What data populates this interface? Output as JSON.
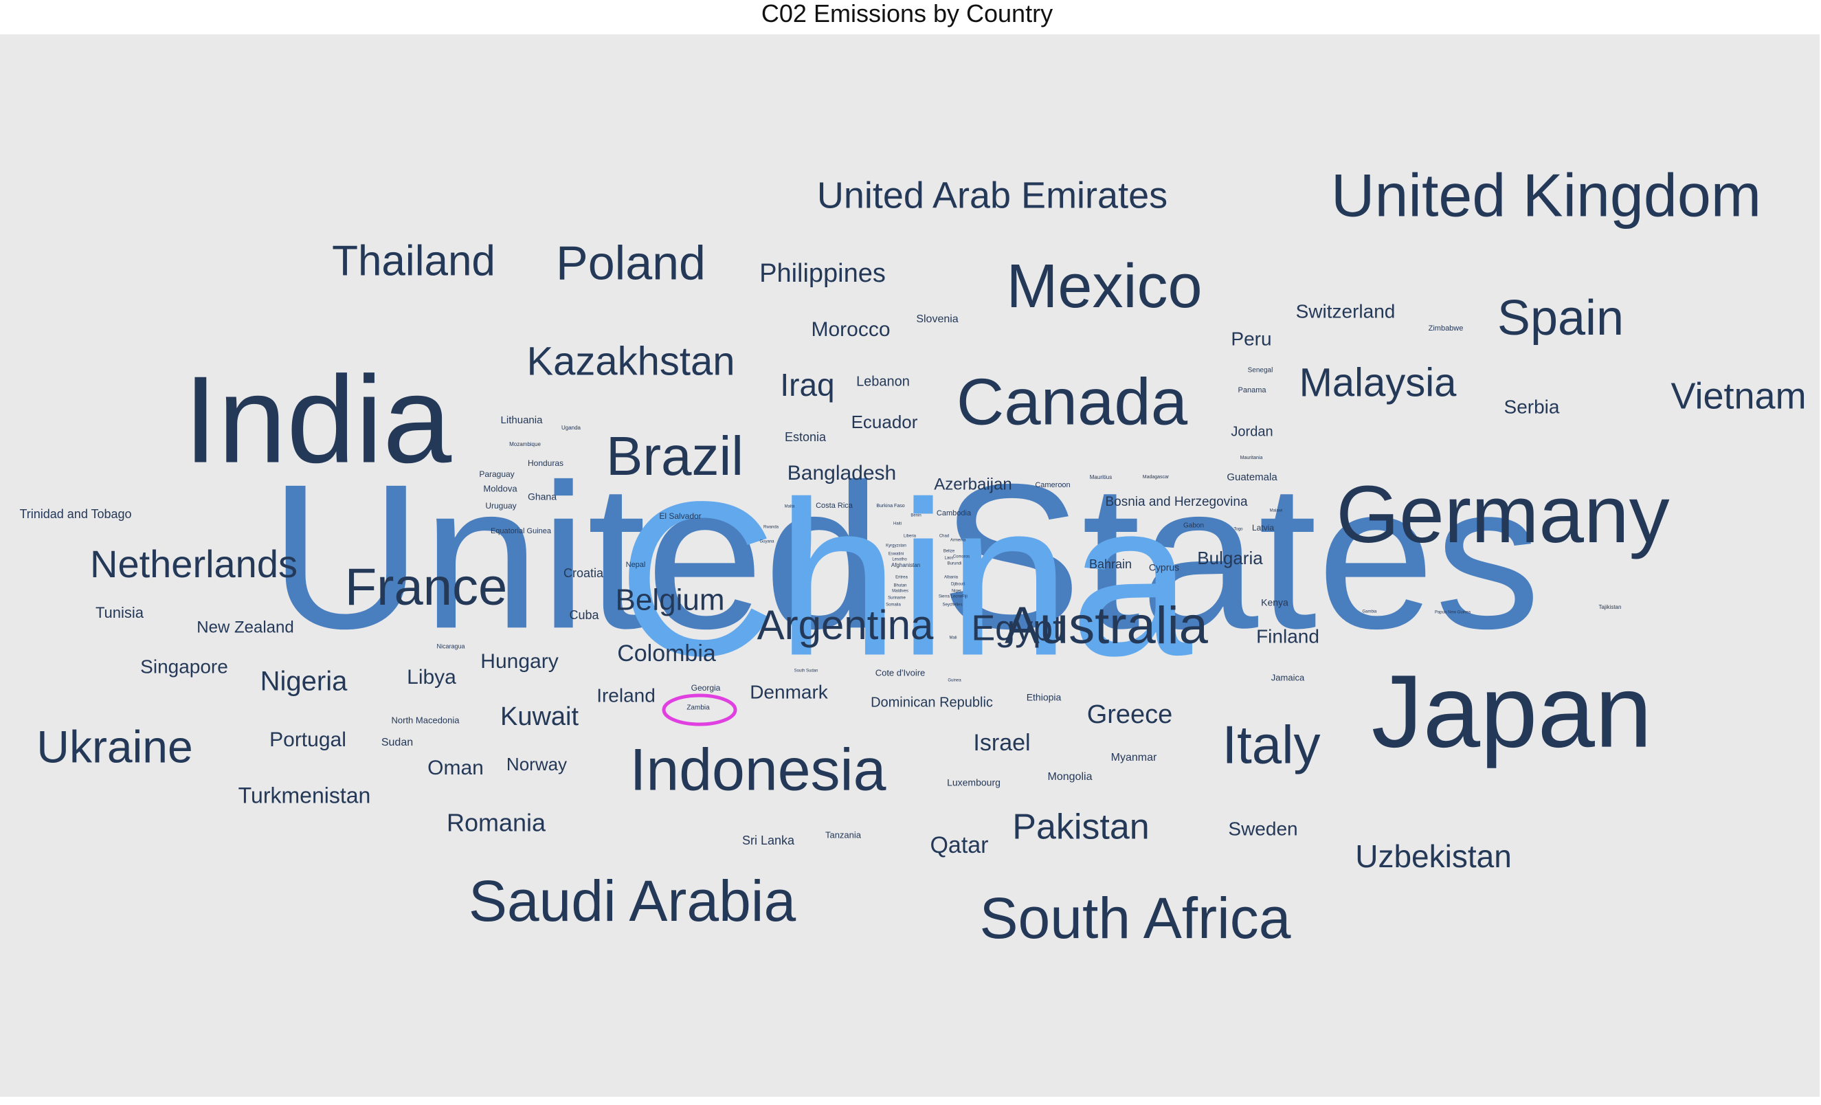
{
  "title": "C02 Emissions by Country",
  "colors": {
    "plot_background": "#e9e9ea",
    "word_dark": "#243857",
    "word_mid": "#4a7fbf",
    "word_light": "#62a8ec",
    "highlight": "#e040e0"
  },
  "chart_data": {
    "type": "wordcloud",
    "title": "C02 Emissions by Country",
    "annotations": [
      {
        "type": "circle",
        "label": "Zambia"
      }
    ],
    "words": [
      {
        "text": "United States",
        "weight": 100,
        "color": "#4a7fbf"
      },
      {
        "text": "China",
        "weight": 96,
        "color": "#62a8ec"
      },
      {
        "text": "India",
        "weight": 52,
        "color": "#243857"
      },
      {
        "text": "Japan",
        "weight": 45,
        "color": "#243857"
      },
      {
        "text": "Germany",
        "weight": 40,
        "color": "#243857"
      },
      {
        "text": "Canada",
        "weight": 33,
        "color": "#243857"
      },
      {
        "text": "Mexico",
        "weight": 32,
        "color": "#243857"
      },
      {
        "text": "Indonesia",
        "weight": 30,
        "color": "#243857"
      },
      {
        "text": "Saudi Arabia",
        "weight": 30,
        "color": "#243857"
      },
      {
        "text": "South Africa",
        "weight": 30,
        "color": "#243857"
      },
      {
        "text": "United Kingdom",
        "weight": 30,
        "color": "#243857"
      },
      {
        "text": "France",
        "weight": 27,
        "color": "#243857"
      },
      {
        "text": "Italy",
        "weight": 27,
        "color": "#243857"
      },
      {
        "text": "Australia",
        "weight": 25,
        "color": "#243857"
      },
      {
        "text": "Brazil",
        "weight": 27,
        "color": "#243857"
      },
      {
        "text": "Poland",
        "weight": 25,
        "color": "#243857"
      },
      {
        "text": "Spain",
        "weight": 25,
        "color": "#243857"
      },
      {
        "text": "Ukraine",
        "weight": 24,
        "color": "#243857"
      },
      {
        "text": "Thailand",
        "weight": 22,
        "color": "#243857"
      },
      {
        "text": "Kazakhstan",
        "weight": 21,
        "color": "#243857"
      },
      {
        "text": "Malaysia",
        "weight": 21,
        "color": "#243857"
      },
      {
        "text": "Netherlands",
        "weight": 20,
        "color": "#243857"
      },
      {
        "text": "Argentina",
        "weight": 20,
        "color": "#243857"
      },
      {
        "text": "United Arab Emirates",
        "weight": 19,
        "color": "#243857"
      },
      {
        "text": "Vietnam",
        "weight": 19,
        "color": "#243857"
      },
      {
        "text": "Pakistan",
        "weight": 19,
        "color": "#243857"
      },
      {
        "text": "Egypt",
        "weight": 18,
        "color": "#243857"
      },
      {
        "text": "Uzbekistan",
        "weight": 17,
        "color": "#243857"
      },
      {
        "text": "Iraq",
        "weight": 17,
        "color": "#243857"
      },
      {
        "text": "Belgium",
        "weight": 16,
        "color": "#243857"
      },
      {
        "text": "Nigeria",
        "weight": 15,
        "color": "#243857"
      },
      {
        "text": "Kuwait",
        "weight": 15,
        "color": "#243857"
      },
      {
        "text": "Greece",
        "weight": 15,
        "color": "#243857"
      },
      {
        "text": "Philippines",
        "weight": 15,
        "color": "#243857"
      },
      {
        "text": "Colombia",
        "weight": 14,
        "color": "#243857"
      },
      {
        "text": "Israel",
        "weight": 14,
        "color": "#243857"
      },
      {
        "text": "Romania",
        "weight": 14,
        "color": "#243857"
      },
      {
        "text": "Morocco",
        "weight": 13,
        "color": "#243857"
      },
      {
        "text": "Libya",
        "weight": 13,
        "color": "#243857"
      },
      {
        "text": "Turkmenistan",
        "weight": 13,
        "color": "#243857"
      },
      {
        "text": "Qatar",
        "weight": 13,
        "color": "#243857"
      },
      {
        "text": "Hungary",
        "weight": 13,
        "color": "#243857"
      },
      {
        "text": "Oman",
        "weight": 13,
        "color": "#243857"
      },
      {
        "text": "Portugal",
        "weight": 13,
        "color": "#243857"
      },
      {
        "text": "Singapore",
        "weight": 12,
        "color": "#243857"
      },
      {
        "text": "Ireland",
        "weight": 12,
        "color": "#243857"
      },
      {
        "text": "Denmark",
        "weight": 12,
        "color": "#243857"
      },
      {
        "text": "Serbia",
        "weight": 12,
        "color": "#243857"
      },
      {
        "text": "Peru",
        "weight": 12,
        "color": "#243857"
      },
      {
        "text": "Switzerland",
        "weight": 12,
        "color": "#243857"
      },
      {
        "text": "Norway",
        "weight": 12,
        "color": "#243857"
      },
      {
        "text": "Sweden",
        "weight": 12,
        "color": "#243857"
      },
      {
        "text": "Finland",
        "weight": 12,
        "color": "#243857"
      },
      {
        "text": "Bangladesh",
        "weight": 12,
        "color": "#243857"
      },
      {
        "text": "Ecuador",
        "weight": 11,
        "color": "#243857"
      },
      {
        "text": "New Zealand",
        "weight": 11,
        "color": "#243857"
      },
      {
        "text": "Azerbaijan",
        "weight": 11,
        "color": "#243857"
      },
      {
        "text": "Bulgaria",
        "weight": 11,
        "color": "#243857"
      },
      {
        "text": "Bosnia and Herzegovina",
        "weight": 10,
        "color": "#243857"
      },
      {
        "text": "Dominican Republic",
        "weight": 10,
        "color": "#243857"
      },
      {
        "text": "Tunisia",
        "weight": 10,
        "color": "#243857"
      },
      {
        "text": "Trinidad and Tobago",
        "weight": 9,
        "color": "#243857"
      },
      {
        "text": "Jordan",
        "weight": 10,
        "color": "#243857"
      },
      {
        "text": "Estonia",
        "weight": 9,
        "color": "#243857"
      },
      {
        "text": "Lebanon",
        "weight": 9,
        "color": "#243857"
      },
      {
        "text": "Sri Lanka",
        "weight": 9,
        "color": "#243857"
      },
      {
        "text": "Myanmar",
        "weight": 9,
        "color": "#243857"
      },
      {
        "text": "Mongolia",
        "weight": 9,
        "color": "#243857"
      },
      {
        "text": "Bahrain",
        "weight": 9,
        "color": "#243857"
      },
      {
        "text": "Croatia",
        "weight": 9,
        "color": "#243857"
      },
      {
        "text": "Cuba",
        "weight": 9,
        "color": "#243857"
      },
      {
        "text": "Sudan",
        "weight": 8,
        "color": "#243857"
      },
      {
        "text": "Slovenia",
        "weight": 8,
        "color": "#243857"
      },
      {
        "text": "Lithuania",
        "weight": 8,
        "color": "#243857"
      },
      {
        "text": "Luxembourg",
        "weight": 8,
        "color": "#243857"
      },
      {
        "text": "Cyprus",
        "weight": 8,
        "color": "#243857"
      },
      {
        "text": "Ethiopia",
        "weight": 8,
        "color": "#243857"
      },
      {
        "text": "Kenya",
        "weight": 8,
        "color": "#243857"
      },
      {
        "text": "Jamaica",
        "weight": 8,
        "color": "#243857"
      },
      {
        "text": "Guatemala",
        "weight": 8,
        "color": "#243857"
      },
      {
        "text": "North Macedonia",
        "weight": 7,
        "color": "#243857"
      },
      {
        "text": "Cote d'Ivoire",
        "weight": 7,
        "color": "#243857"
      },
      {
        "text": "Tanzania",
        "weight": 7,
        "color": "#243857"
      },
      {
        "text": "Georgia",
        "weight": 7,
        "color": "#243857"
      },
      {
        "text": "Zambia",
        "weight": 6,
        "color": "#243857"
      },
      {
        "text": "Ghana",
        "weight": 7,
        "color": "#243857"
      },
      {
        "text": "Moldova",
        "weight": 7,
        "color": "#243857"
      },
      {
        "text": "Uruguay",
        "weight": 7,
        "color": "#243857"
      },
      {
        "text": "Paraguay",
        "weight": 7,
        "color": "#243857"
      },
      {
        "text": "Honduras",
        "weight": 7,
        "color": "#243857"
      },
      {
        "text": "El Salvador",
        "weight": 7,
        "color": "#243857"
      },
      {
        "text": "Equatorial Guinea",
        "weight": 6,
        "color": "#243857"
      },
      {
        "text": "Nepal",
        "weight": 6,
        "color": "#243857"
      },
      {
        "text": "Costa Rica",
        "weight": 6,
        "color": "#243857"
      },
      {
        "text": "Cameroon",
        "weight": 6,
        "color": "#243857"
      },
      {
        "text": "Cambodia",
        "weight": 6,
        "color": "#243857"
      },
      {
        "text": "Panama",
        "weight": 6,
        "color": "#243857"
      },
      {
        "text": "Senegal",
        "weight": 6,
        "color": "#243857"
      },
      {
        "text": "Zimbabwe",
        "weight": 6,
        "color": "#243857"
      },
      {
        "text": "Latvia",
        "weight": 6,
        "color": "#243857"
      },
      {
        "text": "Gabon",
        "weight": 6,
        "color": "#243857"
      },
      {
        "text": "Nicaragua",
        "weight": 5,
        "color": "#243857"
      },
      {
        "text": "Mozambique",
        "weight": 5,
        "color": "#243857"
      },
      {
        "text": "Uganda",
        "weight": 5,
        "color": "#243857"
      },
      {
        "text": "Mauritius",
        "weight": 5,
        "color": "#243857"
      },
      {
        "text": "Madagascar",
        "weight": 5,
        "color": "#243857"
      },
      {
        "text": "Mauritania",
        "weight": 5,
        "color": "#243857"
      },
      {
        "text": "Burkina Faso",
        "weight": 5,
        "color": "#243857"
      },
      {
        "text": "Afghanistan",
        "weight": 5,
        "color": "#243857"
      },
      {
        "text": "Tajikistan",
        "weight": 5,
        "color": "#243857"
      },
      {
        "text": "South Sudan",
        "weight": 4,
        "color": "#243857"
      },
      {
        "text": "Guinea",
        "weight": 4,
        "color": "#243857"
      },
      {
        "text": "Mali",
        "weight": 4,
        "color": "#243857"
      },
      {
        "text": "Malta",
        "weight": 4,
        "color": "#243857"
      },
      {
        "text": "Togo",
        "weight": 4,
        "color": "#243857"
      },
      {
        "text": "Haiti",
        "weight": 4,
        "color": "#243857"
      },
      {
        "text": "Armenia",
        "weight": 4,
        "color": "#243857"
      },
      {
        "text": "Albania",
        "weight": 4,
        "color": "#243857"
      },
      {
        "text": "Gambia",
        "weight": 4,
        "color": "#243857"
      },
      {
        "text": "Papua New Guinea",
        "weight": 4,
        "color": "#243857"
      },
      {
        "text": "Malawi",
        "weight": 4,
        "color": "#243857"
      },
      {
        "text": "Benin",
        "weight": 4,
        "color": "#243857"
      },
      {
        "text": "Niger",
        "weight": 4,
        "color": "#243857"
      },
      {
        "text": "Belize",
        "weight": 4,
        "color": "#243857"
      },
      {
        "text": "Laos",
        "weight": 4,
        "color": "#243857"
      },
      {
        "text": "Kyrgyzstan",
        "weight": 4,
        "color": "#243857"
      },
      {
        "text": "Sierra Leone",
        "weight": 4,
        "color": "#243857"
      },
      {
        "text": "Rwanda",
        "weight": 4,
        "color": "#243857"
      },
      {
        "text": "Eritrea",
        "weight": 4,
        "color": "#243857"
      },
      {
        "text": "Bhutan",
        "weight": 4,
        "color": "#243857"
      },
      {
        "text": "Guyana",
        "weight": 4,
        "color": "#243857"
      },
      {
        "text": "Suriname",
        "weight": 4,
        "color": "#243857"
      },
      {
        "text": "Fiji",
        "weight": 4,
        "color": "#243857"
      },
      {
        "text": "Burundi",
        "weight": 4,
        "color": "#243857"
      },
      {
        "text": "Chad",
        "weight": 4,
        "color": "#243857"
      },
      {
        "text": "Somalia",
        "weight": 4,
        "color": "#243857"
      },
      {
        "text": "Liberia",
        "weight": 4,
        "color": "#243857"
      },
      {
        "text": "Djibouti",
        "weight": 4,
        "color": "#243857"
      },
      {
        "text": "Lesotho",
        "weight": 4,
        "color": "#243857"
      },
      {
        "text": "Eswatini",
        "weight": 4,
        "color": "#243857"
      },
      {
        "text": "Comoros",
        "weight": 4,
        "color": "#243857"
      },
      {
        "text": "Maldives",
        "weight": 4,
        "color": "#243857"
      },
      {
        "text": "Seychelles",
        "weight": 4,
        "color": "#243857"
      }
    ]
  }
}
